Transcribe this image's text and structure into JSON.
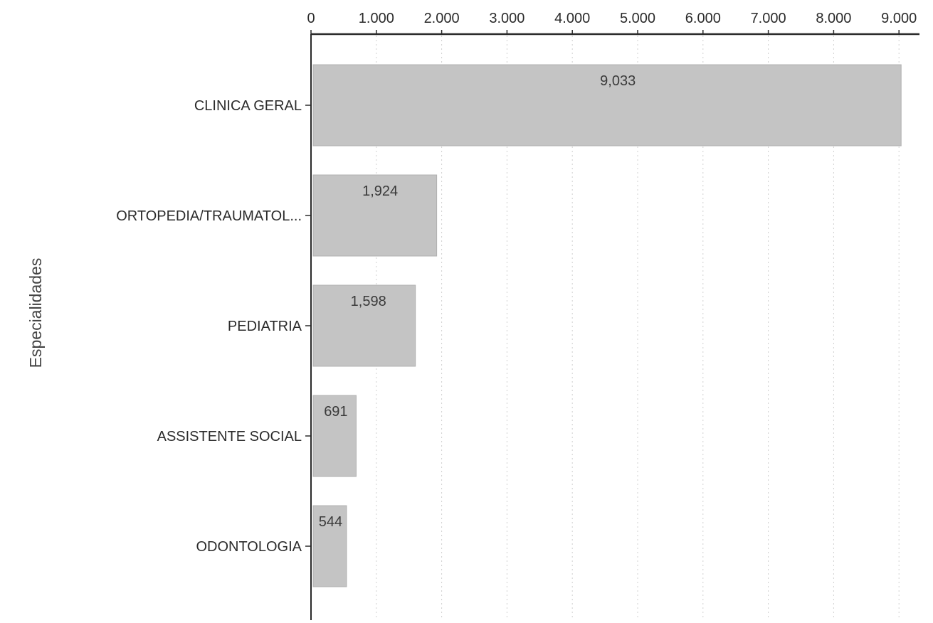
{
  "chart_data": {
    "type": "bar",
    "orientation": "horizontal",
    "categories": [
      "CLINICA GERAL",
      "ORTOPEDIA/TRAUMATOL...",
      "PEDIATRIA",
      "ASSISTENTE SOCIAL",
      "ODONTOLOGIA"
    ],
    "values": [
      9033,
      1924,
      1598,
      691,
      544
    ],
    "data_labels": [
      "9,033",
      "1,924",
      "1,598",
      "691",
      "544"
    ],
    "x_ticks": [
      0,
      1000,
      2000,
      3000,
      4000,
      5000,
      6000,
      7000,
      8000,
      9000
    ],
    "x_tick_labels": [
      "0",
      "1.000",
      "2.000",
      "3.000",
      "4.000",
      "5.000",
      "6.000",
      "7.000",
      "8.000",
      "9.000"
    ],
    "xlim": [
      0,
      9500
    ],
    "x_axis_position": "top",
    "ylabel": "Especialidades",
    "xlabel": "",
    "title": "",
    "grid": "vertical dotted",
    "legend": "none",
    "colors": {
      "bar": "#c4c4c4",
      "bar_edge": "#b0b0b0",
      "axis": "#2a2a2a",
      "grid": "#d0d0d0",
      "text": "#2b2b2b"
    }
  }
}
